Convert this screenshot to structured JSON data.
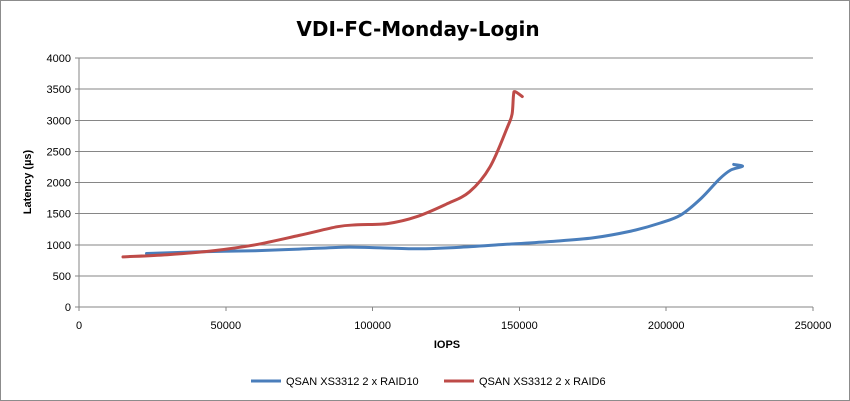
{
  "chart_data": {
    "type": "line",
    "title": "VDI-FC-Monday-Login",
    "xlabel": "IOPS",
    "ylabel": "Latency (µs)",
    "xlim": [
      0,
      250000
    ],
    "ylim": [
      0,
      4000
    ],
    "x_ticks": [
      "0",
      "50000",
      "100000",
      "150000",
      "200000",
      "250000"
    ],
    "y_ticks": [
      "0",
      "500",
      "1000",
      "1500",
      "2000",
      "2500",
      "3000",
      "3500",
      "4000"
    ],
    "grid": true,
    "legend_position": "bottom",
    "series": [
      {
        "name": "QSAN XS3312 2 x RAID10",
        "color": "#4a7ebb",
        "points": [
          [
            23000,
            860
          ],
          [
            40000,
            885
          ],
          [
            60000,
            905
          ],
          [
            75000,
            930
          ],
          [
            90000,
            960
          ],
          [
            100000,
            955
          ],
          [
            115000,
            935
          ],
          [
            130000,
            960
          ],
          [
            145000,
            1005
          ],
          [
            160000,
            1050
          ],
          [
            175000,
            1110
          ],
          [
            188000,
            1220
          ],
          [
            198000,
            1350
          ],
          [
            205000,
            1480
          ],
          [
            212000,
            1750
          ],
          [
            218000,
            2050
          ],
          [
            222000,
            2200
          ],
          [
            226000,
            2260
          ],
          [
            223000,
            2290
          ]
        ]
      },
      {
        "name": "QSAN XS3312 2 x RAID6",
        "color": "#be4b48",
        "points": [
          [
            15000,
            805
          ],
          [
            30000,
            840
          ],
          [
            45000,
            900
          ],
          [
            60000,
            1000
          ],
          [
            75000,
            1150
          ],
          [
            88000,
            1290
          ],
          [
            95000,
            1320
          ],
          [
            105000,
            1340
          ],
          [
            115000,
            1450
          ],
          [
            125000,
            1650
          ],
          [
            133000,
            1850
          ],
          [
            140000,
            2250
          ],
          [
            146000,
            2900
          ],
          [
            147500,
            3100
          ],
          [
            148000,
            3400
          ],
          [
            148500,
            3460
          ],
          [
            151000,
            3380
          ]
        ]
      }
    ]
  }
}
